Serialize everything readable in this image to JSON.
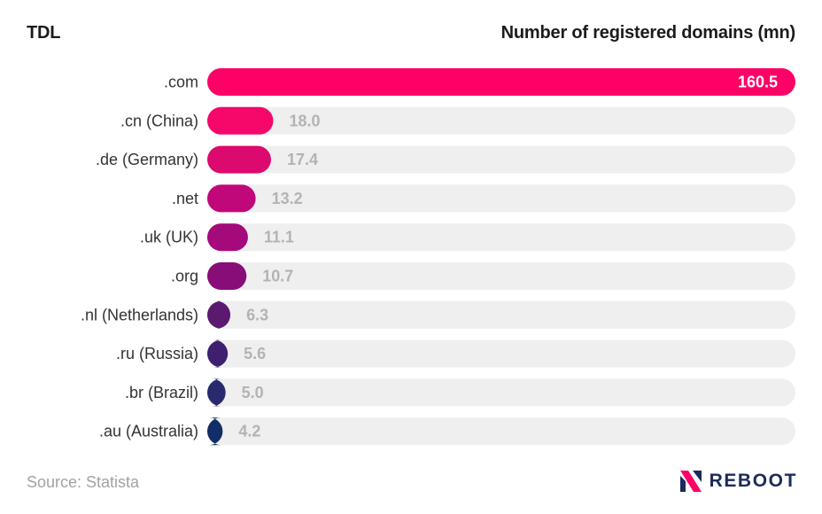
{
  "header": {
    "left_label": "TDL",
    "right_label": "Number of registered domains (mn)"
  },
  "footer": {
    "source": "Source: Statista",
    "brand": "REBOOT"
  },
  "chart_data": {
    "type": "bar",
    "orientation": "horizontal",
    "title": "Number of registered domains (mn)",
    "xlabel": "Number of registered domains (mn)",
    "ylabel": "TDL",
    "categories": [
      ".com",
      ".cn (China)",
      ".de (Germany)",
      ".net",
      ".uk (UK)",
      ".org",
      ".nl (Netherlands)",
      ".ru (Russia)",
      ".br (Brazil)",
      ".au (Australia)"
    ],
    "values": [
      160.5,
      18.0,
      17.4,
      13.2,
      11.1,
      10.7,
      6.3,
      5.6,
      5.0,
      4.2
    ],
    "value_labels": [
      "160.5",
      "18.0",
      "17.4",
      "13.2",
      "11.1",
      "10.7",
      "6.3",
      "5.6",
      "5.0",
      "4.2"
    ],
    "xlim": [
      0,
      160.5
    ],
    "colors": [
      "#ff0066",
      "#f5086a",
      "#dc0a6e",
      "#c0087a",
      "#a40a7c",
      "#880d78",
      "#5b1a70",
      "#3d2070",
      "#282a6d",
      "#132d66"
    ],
    "track_color": "#efefef",
    "grid": false
  }
}
